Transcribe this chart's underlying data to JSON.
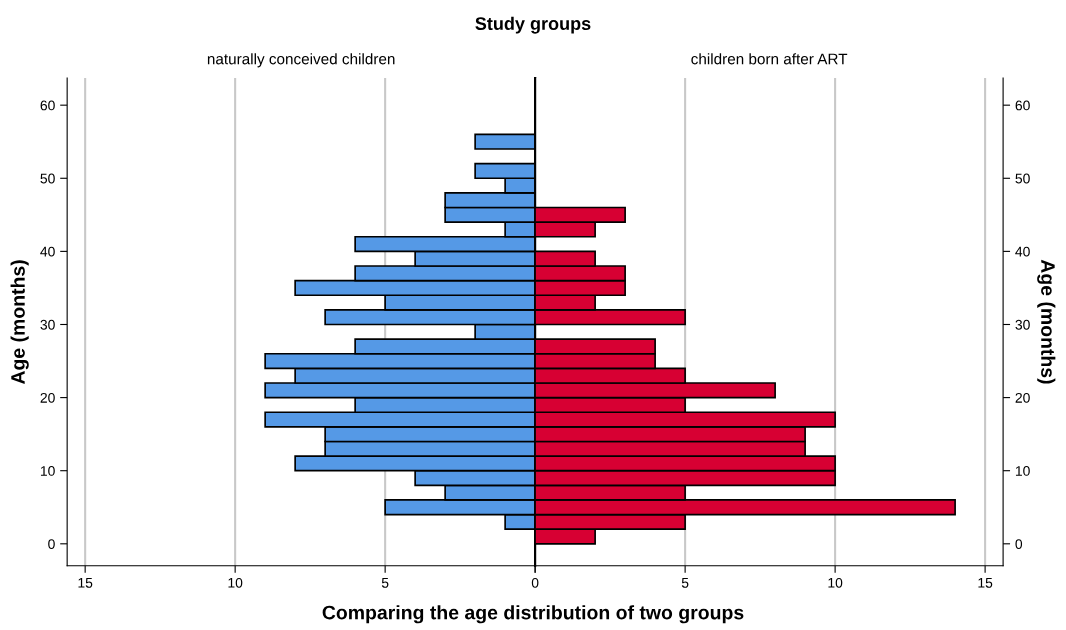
{
  "chart_data": [
    {
      "type": "histogram",
      "orientation": "horizontal",
      "title": "Study groups",
      "subtitle": "naturally conceived children",
      "xlabel": "Comparing the age distribution of two groups",
      "ylabel": "Age (months)",
      "bins": [
        2,
        4,
        6,
        8,
        10,
        12,
        14,
        16,
        18,
        20,
        22,
        24,
        26,
        28,
        30,
        32,
        34,
        36,
        38,
        40,
        42,
        44,
        46,
        48,
        50,
        52,
        54,
        56
      ],
      "values": [
        1,
        5,
        3,
        4,
        8,
        7,
        7,
        9,
        6,
        9,
        8,
        9,
        6,
        2,
        7,
        5,
        8,
        6,
        4,
        6,
        1,
        3,
        3,
        1,
        2,
        0,
        2
      ],
      "color": "#5599e6",
      "xlim": [
        15.6,
        0
      ],
      "xticks": [
        15,
        10,
        5,
        0
      ],
      "ylim": [
        -3,
        63.7
      ],
      "yticks": [
        0,
        10,
        20,
        30,
        40,
        50,
        60
      ],
      "grid": "x"
    },
    {
      "type": "histogram",
      "orientation": "horizontal",
      "subtitle": "children born after ART",
      "ylabel": "Age (months)",
      "bins": [
        0,
        2,
        4,
        6,
        8,
        10,
        12,
        14,
        16,
        18,
        20,
        22,
        24,
        26,
        28,
        30,
        32,
        34,
        36,
        38,
        40,
        42,
        44,
        46
      ],
      "values": [
        2,
        5,
        14,
        5,
        10,
        10,
        9,
        9,
        10,
        5,
        8,
        5,
        4,
        4,
        0,
        5,
        2,
        3,
        3,
        2,
        0,
        2,
        3
      ],
      "color": "#d70033",
      "xlim": [
        0,
        15.6
      ],
      "xticks": [
        {
          "value": 0,
          "label": null
        },
        5,
        10,
        15
      ],
      "ylim": [
        -3,
        63.7
      ],
      "yticks": [
        0,
        10,
        20,
        30,
        40,
        50,
        60
      ],
      "grid": "x"
    }
  ]
}
